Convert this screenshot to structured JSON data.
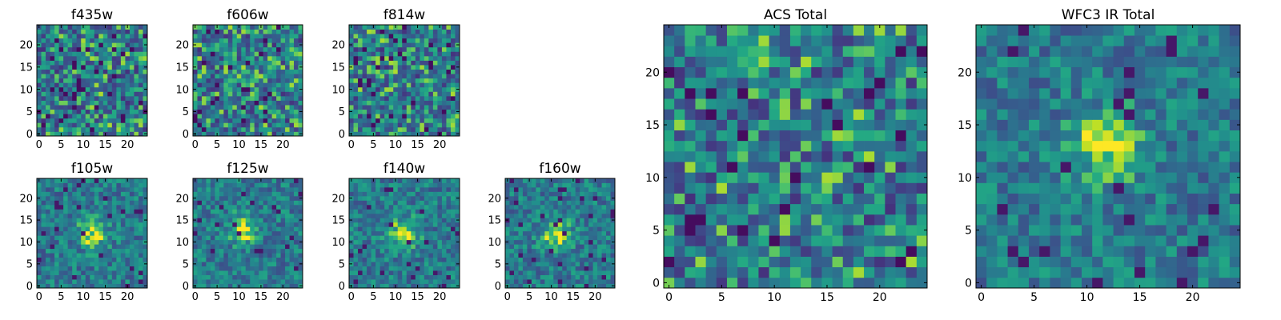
{
  "chart_data": {
    "type": "heatmap",
    "colormap": "viridis",
    "grid": false,
    "panels": [
      {
        "title": "f435w",
        "image_size": 25,
        "pattern": "noise",
        "xticks": [
          0,
          5,
          10,
          15,
          20
        ],
        "yticks": [
          0,
          5,
          10,
          15,
          20
        ],
        "xlim": [
          -0.5,
          24.5
        ],
        "ylim": [
          -0.5,
          24.5
        ]
      },
      {
        "title": "f606w",
        "image_size": 25,
        "pattern": "noise",
        "xticks": [
          0,
          5,
          10,
          15,
          20
        ],
        "yticks": [
          0,
          5,
          10,
          15,
          20
        ],
        "xlim": [
          -0.5,
          24.5
        ],
        "ylim": [
          -0.5,
          24.5
        ]
      },
      {
        "title": "f814w",
        "image_size": 25,
        "pattern": "noise",
        "xticks": [
          0,
          5,
          10,
          15,
          20
        ],
        "yticks": [
          0,
          5,
          10,
          15,
          20
        ],
        "xlim": [
          -0.5,
          24.5
        ],
        "ylim": [
          -0.5,
          24.5
        ]
      },
      {
        "title": "f105w",
        "image_size": 25,
        "pattern": "source",
        "source_center": [
          12,
          12
        ],
        "xticks": [
          0,
          5,
          10,
          15,
          20
        ],
        "yticks": [
          0,
          5,
          10,
          15,
          20
        ],
        "xlim": [
          -0.5,
          24.5
        ],
        "ylim": [
          -0.5,
          24.5
        ]
      },
      {
        "title": "f125w",
        "image_size": 25,
        "pattern": "source",
        "source_center": [
          11,
          13
        ],
        "xticks": [
          0,
          5,
          10,
          15,
          20
        ],
        "yticks": [
          0,
          5,
          10,
          15,
          20
        ],
        "xlim": [
          -0.5,
          24.5
        ],
        "ylim": [
          -0.5,
          24.5
        ]
      },
      {
        "title": "f140w",
        "image_size": 25,
        "pattern": "source",
        "source_center": [
          12,
          12
        ],
        "xticks": [
          0,
          5,
          10,
          15,
          20
        ],
        "yticks": [
          0,
          5,
          10,
          15,
          20
        ],
        "xlim": [
          -0.5,
          24.5
        ],
        "ylim": [
          -0.5,
          24.5
        ]
      },
      {
        "title": "f160w",
        "image_size": 25,
        "pattern": "source",
        "source_center": [
          11,
          12
        ],
        "xticks": [
          0,
          5,
          10,
          15,
          20
        ],
        "yticks": [
          0,
          5,
          10,
          15,
          20
        ],
        "xlim": [
          -0.5,
          24.5
        ],
        "ylim": [
          -0.5,
          24.5
        ]
      },
      {
        "title": "ACS Total",
        "image_size": 25,
        "pattern": "noise",
        "xticks": [
          0,
          5,
          10,
          15,
          20
        ],
        "yticks": [
          0,
          5,
          10,
          15,
          20
        ],
        "xlim": [
          -0.5,
          24.5
        ],
        "ylim": [
          -0.5,
          24.5
        ]
      },
      {
        "title": "WFC3 IR Total",
        "image_size": 25,
        "pattern": "source",
        "source_center": [
          12,
          13
        ],
        "xticks": [
          0,
          5,
          10,
          15,
          20
        ],
        "yticks": [
          0,
          5,
          10,
          15,
          20
        ],
        "xlim": [
          -0.5,
          24.5
        ],
        "ylim": [
          -0.5,
          24.5
        ]
      }
    ]
  }
}
